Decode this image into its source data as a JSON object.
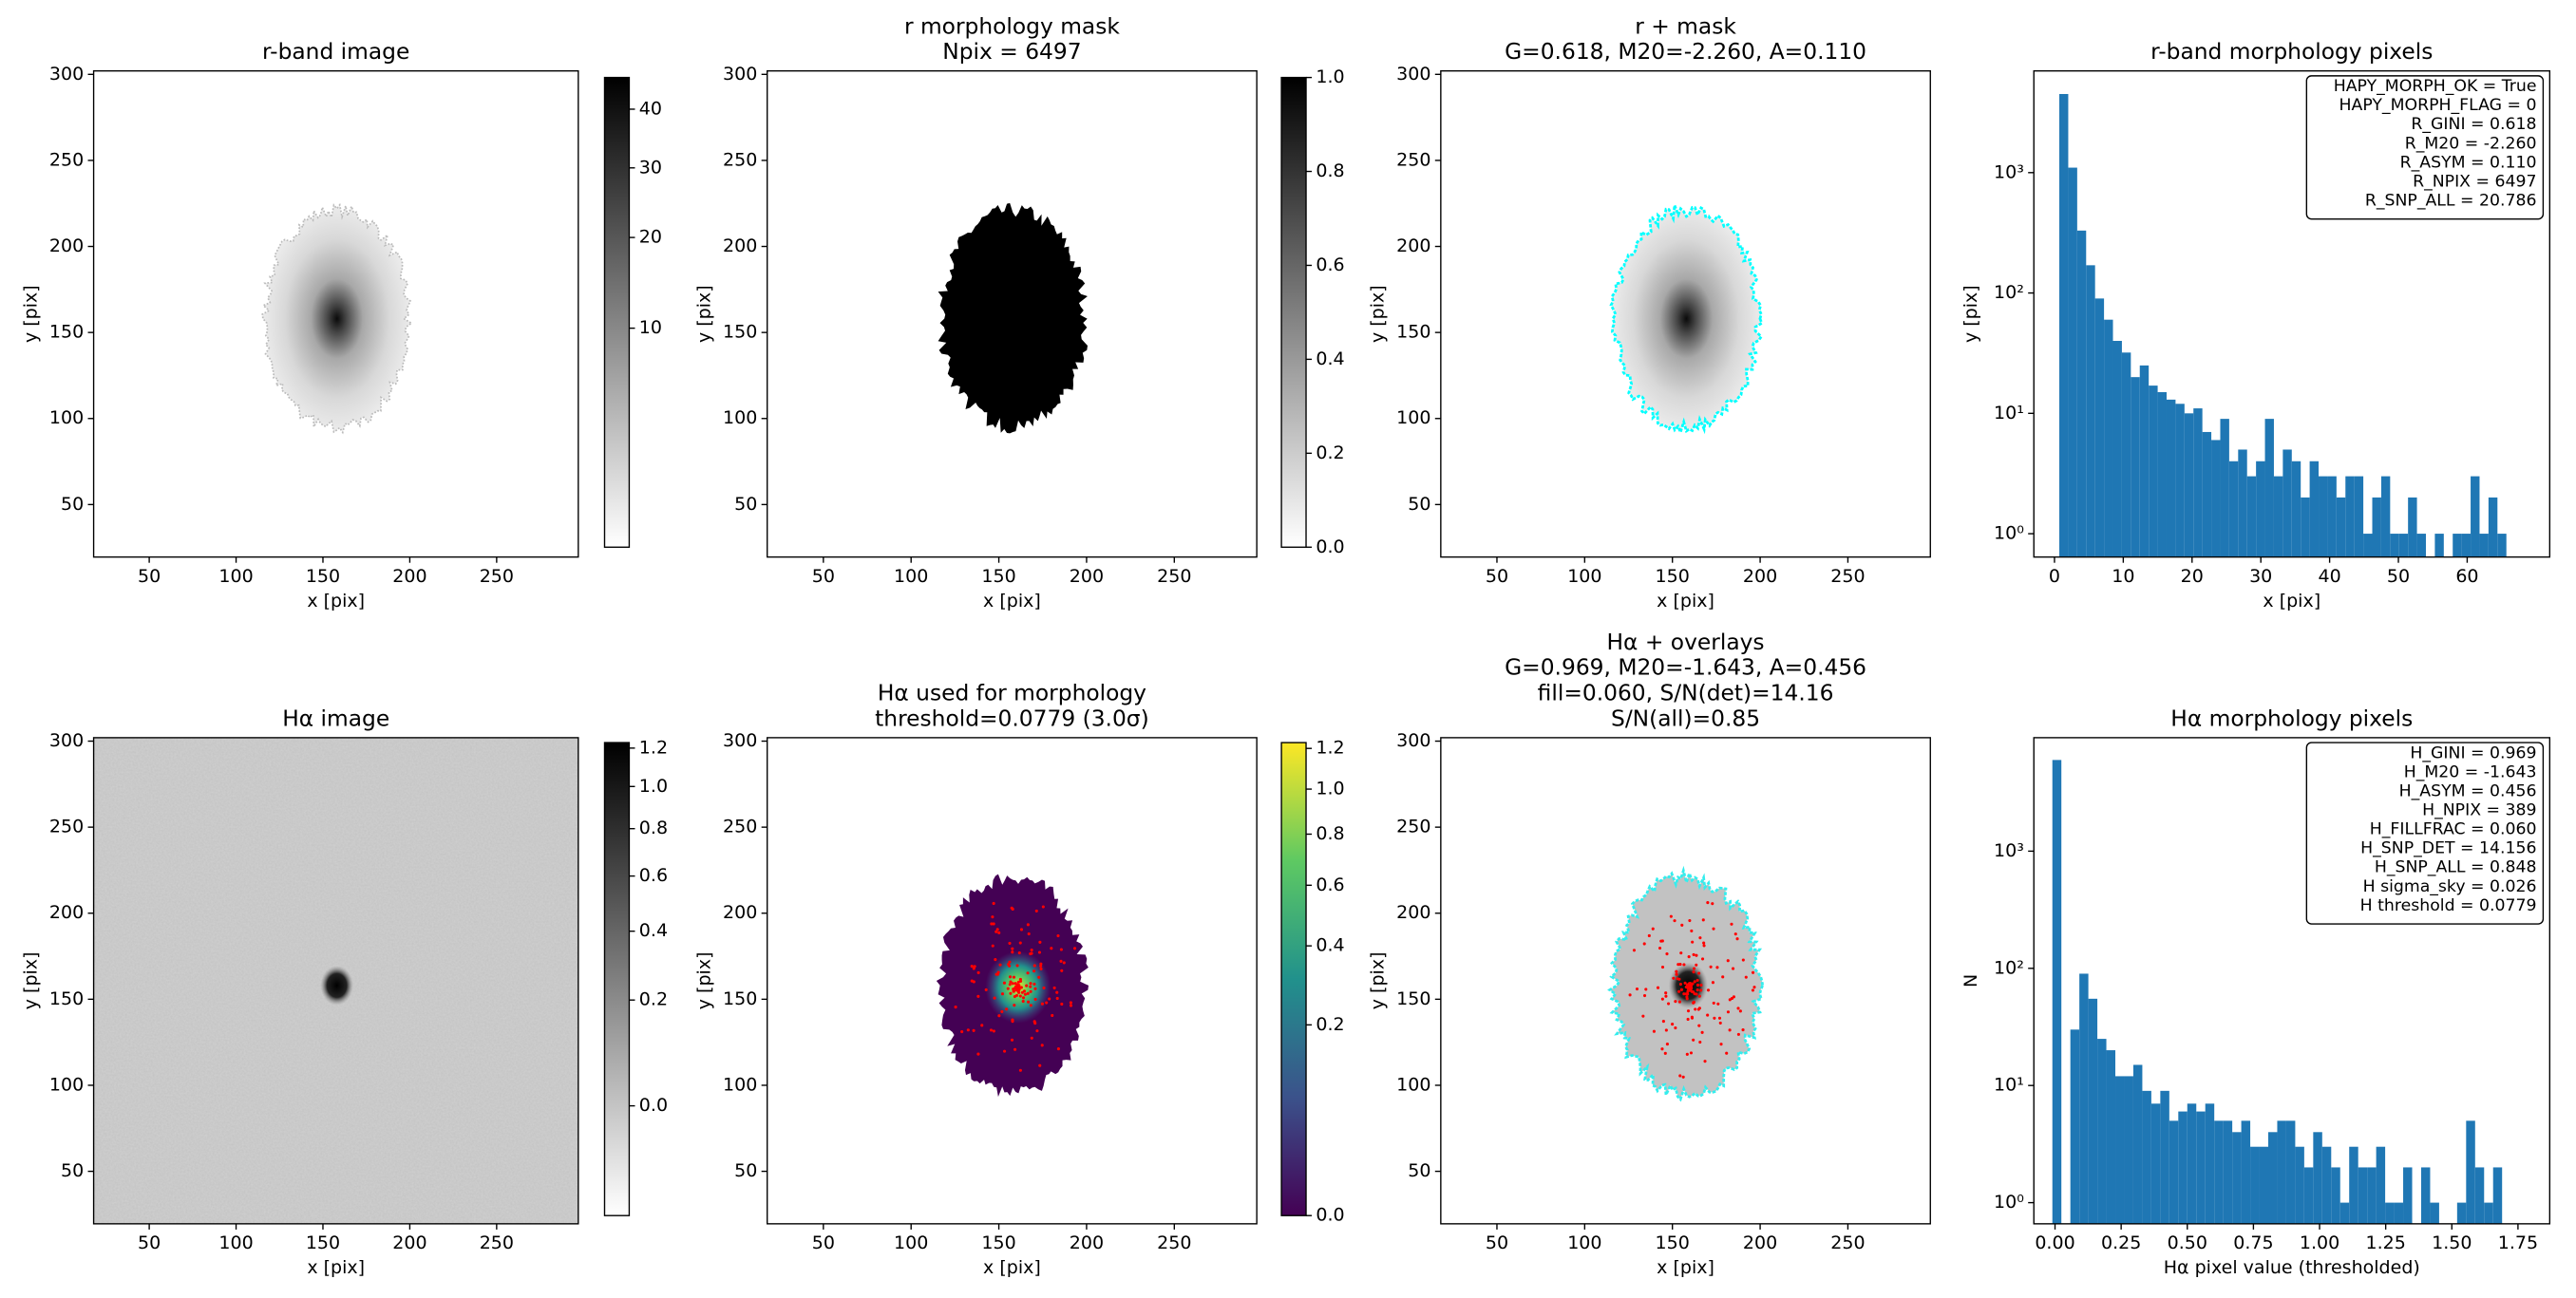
{
  "chart_data": [
    {
      "type": "image",
      "title": [
        "r-band image"
      ],
      "xlabel": "x [pix]",
      "ylabel": "y [pix]",
      "cmap": "gray_r",
      "xlim": [
        18,
        297
      ],
      "ylim": [
        19.5,
        302
      ],
      "xticks": [
        50,
        100,
        150,
        200,
        250
      ],
      "yticks": [
        50,
        100,
        150,
        200,
        250,
        300
      ],
      "colorbar": {
        "clim": [
          0,
          46
        ],
        "stretch": "sqrt",
        "ticks": [
          10,
          20,
          30,
          40
        ]
      }
    },
    {
      "type": "image",
      "title": [
        "r morphology mask",
        "Npix = 6497"
      ],
      "xlabel": "x [pix]",
      "ylabel": "y [pix]",
      "cmap": "gray_r",
      "xlim": [
        18,
        297
      ],
      "ylim": [
        19.5,
        302
      ],
      "xticks": [
        50,
        100,
        150,
        200,
        250
      ],
      "yticks": [
        50,
        100,
        150,
        200,
        250,
        300
      ],
      "colorbar": {
        "clim": [
          0,
          1
        ],
        "stretch": "linear",
        "ticks": [
          {
            "value": 0,
            "label": "0.0"
          },
          0.2,
          0.4,
          0.6,
          0.8,
          {
            "value": 1,
            "label": "1.0"
          }
        ]
      }
    },
    {
      "type": "image",
      "title": [
        "r + mask",
        "G=0.618, M20=-2.260, A=0.110"
      ],
      "xlabel": "x [pix]",
      "ylabel": "y [pix]",
      "cmap": "gray_r",
      "xlim": [
        18,
        297
      ],
      "ylim": [
        19.5,
        302
      ],
      "xticks": [
        50,
        100,
        150,
        200,
        250
      ],
      "yticks": [
        50,
        100,
        150,
        200,
        250,
        300
      ]
    },
    {
      "type": "histogram",
      "title": [
        "r-band morphology pixels"
      ],
      "xlabel": "x [pix]",
      "ylabel": "y [pix]",
      "color": "#1f77b4",
      "log_y": true,
      "xlim": [
        -3,
        72
      ],
      "ylim": [
        0.64,
        7000
      ],
      "xticks": [
        0,
        10,
        20,
        30,
        40,
        50,
        60
      ],
      "yticks": [
        {
          "value": 1,
          "label": "10⁰"
        },
        {
          "value": 10,
          "label": "10¹"
        },
        {
          "value": 100,
          "label": "10²"
        },
        {
          "value": 1000,
          "label": "10³"
        }
      ],
      "bins": [
        0.7,
        2.0,
        3.3,
        4.6,
        5.9,
        7.2,
        8.5,
        9.8,
        11.1,
        12.4,
        13.7,
        15.0,
        16.3,
        17.6,
        18.9,
        20.2,
        21.5,
        22.8,
        24.1,
        25.4,
        26.7,
        28.0,
        29.3,
        30.6,
        31.9,
        33.2,
        34.5,
        35.8,
        37.1,
        38.4,
        39.7,
        41.0,
        42.3,
        43.6,
        44.9,
        46.2,
        47.5,
        48.8,
        50.1,
        51.4,
        52.7,
        54.0,
        55.3,
        56.6,
        57.9,
        59.2,
        60.5,
        61.8,
        63.1,
        64.4,
        65.7
      ],
      "values": [
        4500,
        1100,
        330,
        170,
        90,
        60,
        40,
        32,
        20,
        25,
        17,
        15,
        13,
        12,
        10,
        11,
        7,
        6,
        9,
        4,
        5,
        3,
        4,
        9,
        3,
        5,
        4,
        2,
        4,
        3,
        3,
        2,
        3,
        3,
        1,
        2,
        3,
        1,
        1,
        2,
        1,
        0,
        1,
        0,
        1,
        1,
        3,
        1,
        2,
        1
      ],
      "annotation": [
        "HAPY_MORPH_OK = True",
        "HAPY_MORPH_FLAG = 0",
        "R_GINI = 0.618",
        "R_M20 = -2.260",
        "R_ASYM = 0.110",
        "R_NPIX = 6497",
        "R_SNP_ALL = 20.786"
      ]
    },
    {
      "type": "image",
      "title": [
        "Hα image"
      ],
      "xlabel": "x [pix]",
      "ylabel": "y [pix]",
      "cmap": "gray_r",
      "xlim": [
        18,
        297
      ],
      "ylim": [
        19.5,
        302
      ],
      "xticks": [
        50,
        100,
        150,
        200,
        250
      ],
      "yticks": [
        50,
        100,
        150,
        200,
        250,
        300
      ],
      "colorbar": {
        "clim": [
          -0.07,
          1.23
        ],
        "stretch": "sqrt",
        "ticks": [
          {
            "value": 0,
            "label": "0.0"
          },
          0.2,
          0.4,
          0.6,
          0.8,
          {
            "value": 1,
            "label": "1.0"
          },
          1.2
        ]
      }
    },
    {
      "type": "image",
      "title": [
        "Hα used for morphology",
        "threshold=0.0779 (3.0σ)"
      ],
      "xlabel": "x [pix]",
      "ylabel": "y [pix]",
      "cmap": "viridis",
      "xlim": [
        18,
        297
      ],
      "ylim": [
        19.5,
        302
      ],
      "xticks": [
        50,
        100,
        150,
        200,
        250
      ],
      "yticks": [
        50,
        100,
        150,
        200,
        250,
        300
      ],
      "colorbar": {
        "clim": [
          0,
          1.23
        ],
        "stretch": "sqrt",
        "ticks": [
          {
            "value": 0,
            "label": "0.0"
          },
          0.2,
          0.4,
          0.6,
          0.8,
          {
            "value": 1,
            "label": "1.0"
          },
          1.2
        ]
      }
    },
    {
      "type": "image",
      "title": [
        "Hα + overlays",
        "G=0.969, M20=-1.643, A=0.456",
        "fill=0.060, S/N(det)=14.16",
        "S/N(all)=0.85"
      ],
      "xlabel": "x [pix]",
      "ylabel": "y [pix]",
      "cmap": "gray_r",
      "xlim": [
        18,
        297
      ],
      "ylim": [
        19.5,
        302
      ],
      "xticks": [
        50,
        100,
        150,
        200,
        250
      ],
      "yticks": [
        50,
        100,
        150,
        200,
        250,
        300
      ]
    },
    {
      "type": "histogram",
      "title": [
        "Hα morphology pixels"
      ],
      "xlabel": "Hα pixel value (thresholded)",
      "ylabel": "N",
      "color": "#1f77b4",
      "log_y": true,
      "xlim": [
        -0.08,
        1.87
      ],
      "ylim": [
        0.66,
        9300
      ],
      "xticks": [
        {
          "value": 0,
          "label": "0.00"
        },
        0.25,
        {
          "value": 0.5,
          "label": "0.50"
        },
        0.75,
        {
          "value": 1,
          "label": "1.00"
        },
        1.25,
        {
          "value": 1.5,
          "label": "1.50"
        },
        1.75
      ],
      "yticks": [
        {
          "value": 1,
          "label": "10⁰"
        },
        {
          "value": 10,
          "label": "10¹"
        },
        {
          "value": 100,
          "label": "10²"
        },
        {
          "value": 1000,
          "label": "10³"
        }
      ],
      "bins": [
        -0.01,
        0.024,
        0.058,
        0.092,
        0.126,
        0.16,
        0.194,
        0.228,
        0.262,
        0.296,
        0.33,
        0.364,
        0.398,
        0.432,
        0.466,
        0.5,
        0.534,
        0.568,
        0.602,
        0.636,
        0.67,
        0.704,
        0.738,
        0.772,
        0.806,
        0.84,
        0.874,
        0.908,
        0.942,
        0.976,
        1.01,
        1.044,
        1.078,
        1.112,
        1.146,
        1.18,
        1.214,
        1.248,
        1.282,
        1.316,
        1.35,
        1.384,
        1.418,
        1.452,
        1.486,
        1.52,
        1.554,
        1.588,
        1.622,
        1.656,
        1.69
      ],
      "values": [
        6000,
        0,
        30,
        90,
        55,
        25,
        20,
        12,
        12,
        15,
        9,
        7,
        9,
        5,
        6,
        7,
        6,
        7,
        5,
        5,
        4,
        5,
        3,
        3,
        4,
        5,
        5,
        3,
        2,
        4,
        3,
        2,
        1,
        3,
        2,
        2,
        3,
        1,
        1,
        2,
        0,
        2,
        1,
        0,
        0,
        1,
        5,
        2,
        1,
        2
      ],
      "annotation": [
        "H_GINI = 0.969",
        "H_M20 = -1.643",
        "H_ASYM = 0.456",
        "H_NPIX = 389",
        "H_FILLFRAC = 0.060",
        "H_SNP_DET = 14.156",
        "H_SNP_ALL = 0.848",
        "H sigma_sky = 0.026",
        "H threshold = 0.0779"
      ]
    }
  ]
}
